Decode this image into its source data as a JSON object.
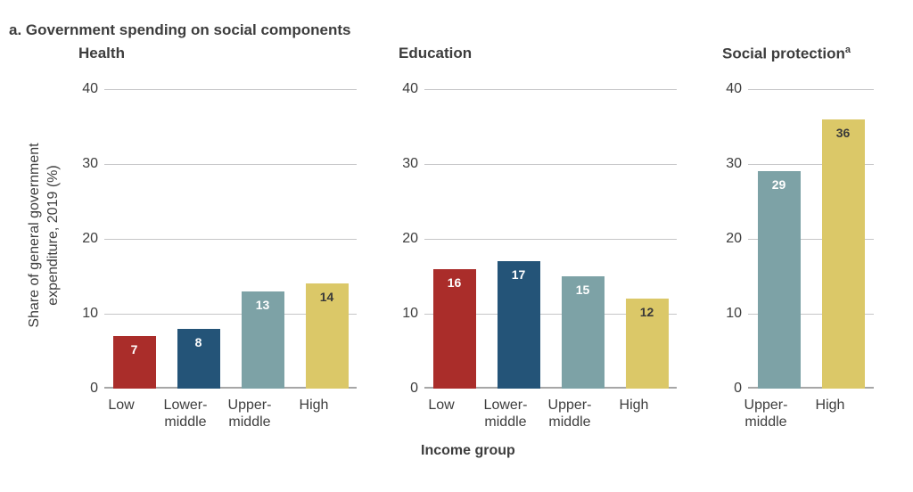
{
  "figure": {
    "title": "a. Government spending on social components",
    "x_axis_title": "Income group",
    "y_axis_label_line1": "Share of general government",
    "y_axis_label_line2": "expenditure, 2019 (%)"
  },
  "colors": {
    "low": "#aa2d2a",
    "lower_middle": "#245478",
    "upper_middle": "#7da2a6",
    "high": "#dbc868",
    "value_label_light": "#ffffff",
    "value_label_dark": "#3a3a3a",
    "text": "#3d3d3d",
    "gridline": "#c6c6c8",
    "baseline": "#a6a6a6"
  },
  "chart_data": {
    "type": "bar",
    "title": "a. Government spending on social components",
    "ylabel": "Share of general government expenditure, 2019 (%)",
    "xlabel": "Income group",
    "ylim": [
      0,
      40
    ],
    "yticks": [
      40,
      30,
      20,
      10,
      0
    ],
    "grid": "horizontal",
    "legend": "none",
    "panels": [
      {
        "title": "Health",
        "title_superscript": "",
        "categories": [
          "Low",
          "Lower-middle",
          "Upper-middle",
          "High"
        ],
        "tick_display": [
          "Low",
          "Lower-\nmiddle",
          "Upper-\nmiddle",
          "High"
        ],
        "values": [
          7,
          8,
          13,
          14
        ],
        "bar_colors": [
          "low",
          "lower_middle",
          "upper_middle",
          "high"
        ],
        "value_label_styles": [
          "light",
          "light",
          "light",
          "dark"
        ]
      },
      {
        "title": "Education",
        "title_superscript": "",
        "categories": [
          "Low",
          "Lower-middle",
          "Upper-middle",
          "High"
        ],
        "tick_display": [
          "Low",
          "Lower-\nmiddle",
          "Upper-\nmiddle",
          "High"
        ],
        "values": [
          16,
          17,
          15,
          12
        ],
        "bar_colors": [
          "low",
          "lower_middle",
          "upper_middle",
          "high"
        ],
        "value_label_styles": [
          "light",
          "light",
          "light",
          "dark"
        ]
      },
      {
        "title": "Social protection",
        "title_superscript": "a",
        "categories": [
          "Upper-middle",
          "High"
        ],
        "tick_display": [
          "Upper-\nmiddle",
          "High"
        ],
        "values": [
          29,
          36
        ],
        "bar_colors": [
          "upper_middle",
          "high"
        ],
        "value_label_styles": [
          "light",
          "dark"
        ]
      }
    ]
  }
}
